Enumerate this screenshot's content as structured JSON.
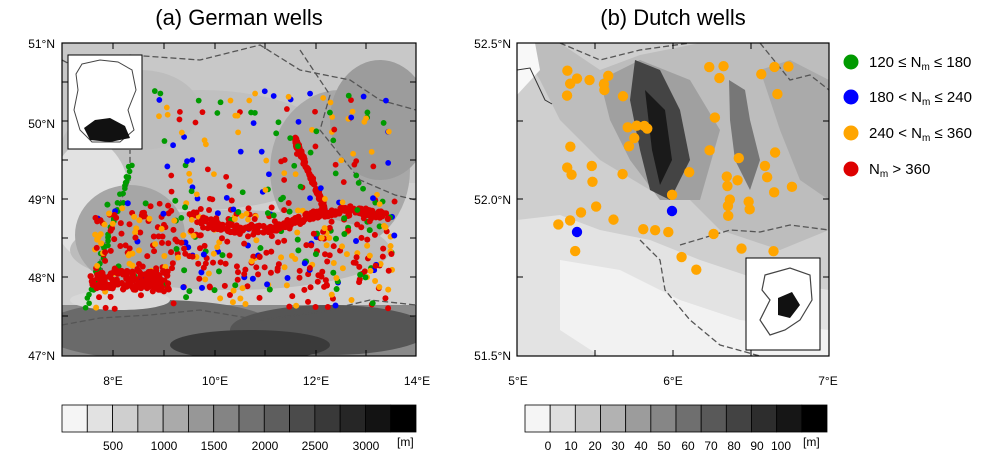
{
  "panels": {
    "left": {
      "title": "(a) German wells",
      "lat_labels": [
        "51°N",
        "50°N",
        "49°N",
        "48°N",
        "47°N"
      ],
      "lon_labels": [
        "8°E",
        "10°E",
        "12°E",
        "14°E"
      ],
      "colorbar": {
        "ticks": [
          "500",
          "1000",
          "1500",
          "2000",
          "2500",
          "3000"
        ],
        "unit": "[m]",
        "levels": 14,
        "range": [
          0,
          3500
        ]
      }
    },
    "right": {
      "title": "(b) Dutch wells",
      "lat_labels": [
        "52.5°N",
        "52.0°N",
        "51.5°N"
      ],
      "lon_labels": [
        "5°E",
        "6°E",
        "7°E"
      ],
      "colorbar": {
        "ticks": [
          "0",
          "10",
          "20",
          "30",
          "40",
          "50",
          "60",
          "70",
          "80",
          "90",
          "100"
        ],
        "unit": "[m]",
        "levels": 12,
        "range": [
          0,
          100
        ]
      }
    }
  },
  "legend": [
    {
      "label_pre": "120 ≤ N",
      "label_sub": "m",
      "label_post": " ≤ 180",
      "color": "#009a00"
    },
    {
      "label_pre": "180 < N",
      "label_sub": "m",
      "label_post": " ≤ 240",
      "color": "#0000ff"
    },
    {
      "label_pre": "240 < N",
      "label_sub": "m",
      "label_post": " ≤ 360",
      "color": "#ffa500"
    },
    {
      "label_pre": "N",
      "label_sub": "m",
      "label_post": " > 360",
      "color": "#dd0000"
    }
  ]
}
